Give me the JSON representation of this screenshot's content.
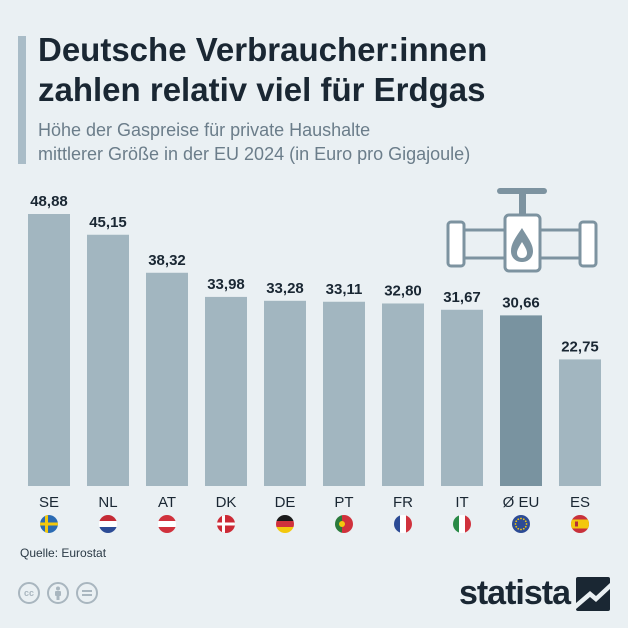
{
  "header": {
    "title_line1": "Deutsche Verbraucher:innen",
    "title_line2": "zahlen relativ viel für Erdgas",
    "subtitle_line1": "Höhe der Gaspreise für private Haushalte",
    "subtitle_line2": "mittlerer Größe in der EU 2024 (in Euro pro Gigajoule)"
  },
  "chart_data": {
    "type": "bar",
    "title": "Höhe der Gaspreise für private Haushalte mittlerer Größe in der EU 2024 (in Euro pro Gigajoule)",
    "categories": [
      "SE",
      "NL",
      "AT",
      "DK",
      "DE",
      "PT",
      "FR",
      "IT",
      "Ø EU",
      "ES"
    ],
    "values": [
      48.88,
      45.15,
      38.32,
      33.98,
      33.28,
      33.11,
      32.8,
      31.67,
      30.66,
      22.75
    ],
    "labels": [
      "48,88",
      "45,15",
      "38,32",
      "33,98",
      "33,28",
      "33,11",
      "32,80",
      "31,67",
      "30,66",
      "22,75"
    ],
    "highlight": "Ø EU",
    "ylim": [
      0,
      50
    ],
    "xlabel": "",
    "ylabel": "Euro pro Gigajoule",
    "colors": {
      "bar": "#a2b6c0",
      "highlight": "#7993a0"
    }
  },
  "footer": {
    "source": "Quelle: Eurostat",
    "brand": "statista"
  },
  "colors": {
    "background": "#eaf0f3",
    "title": "#1a2733",
    "subtitle": "#6b7d8a",
    "accent": "#a9bcc7"
  }
}
